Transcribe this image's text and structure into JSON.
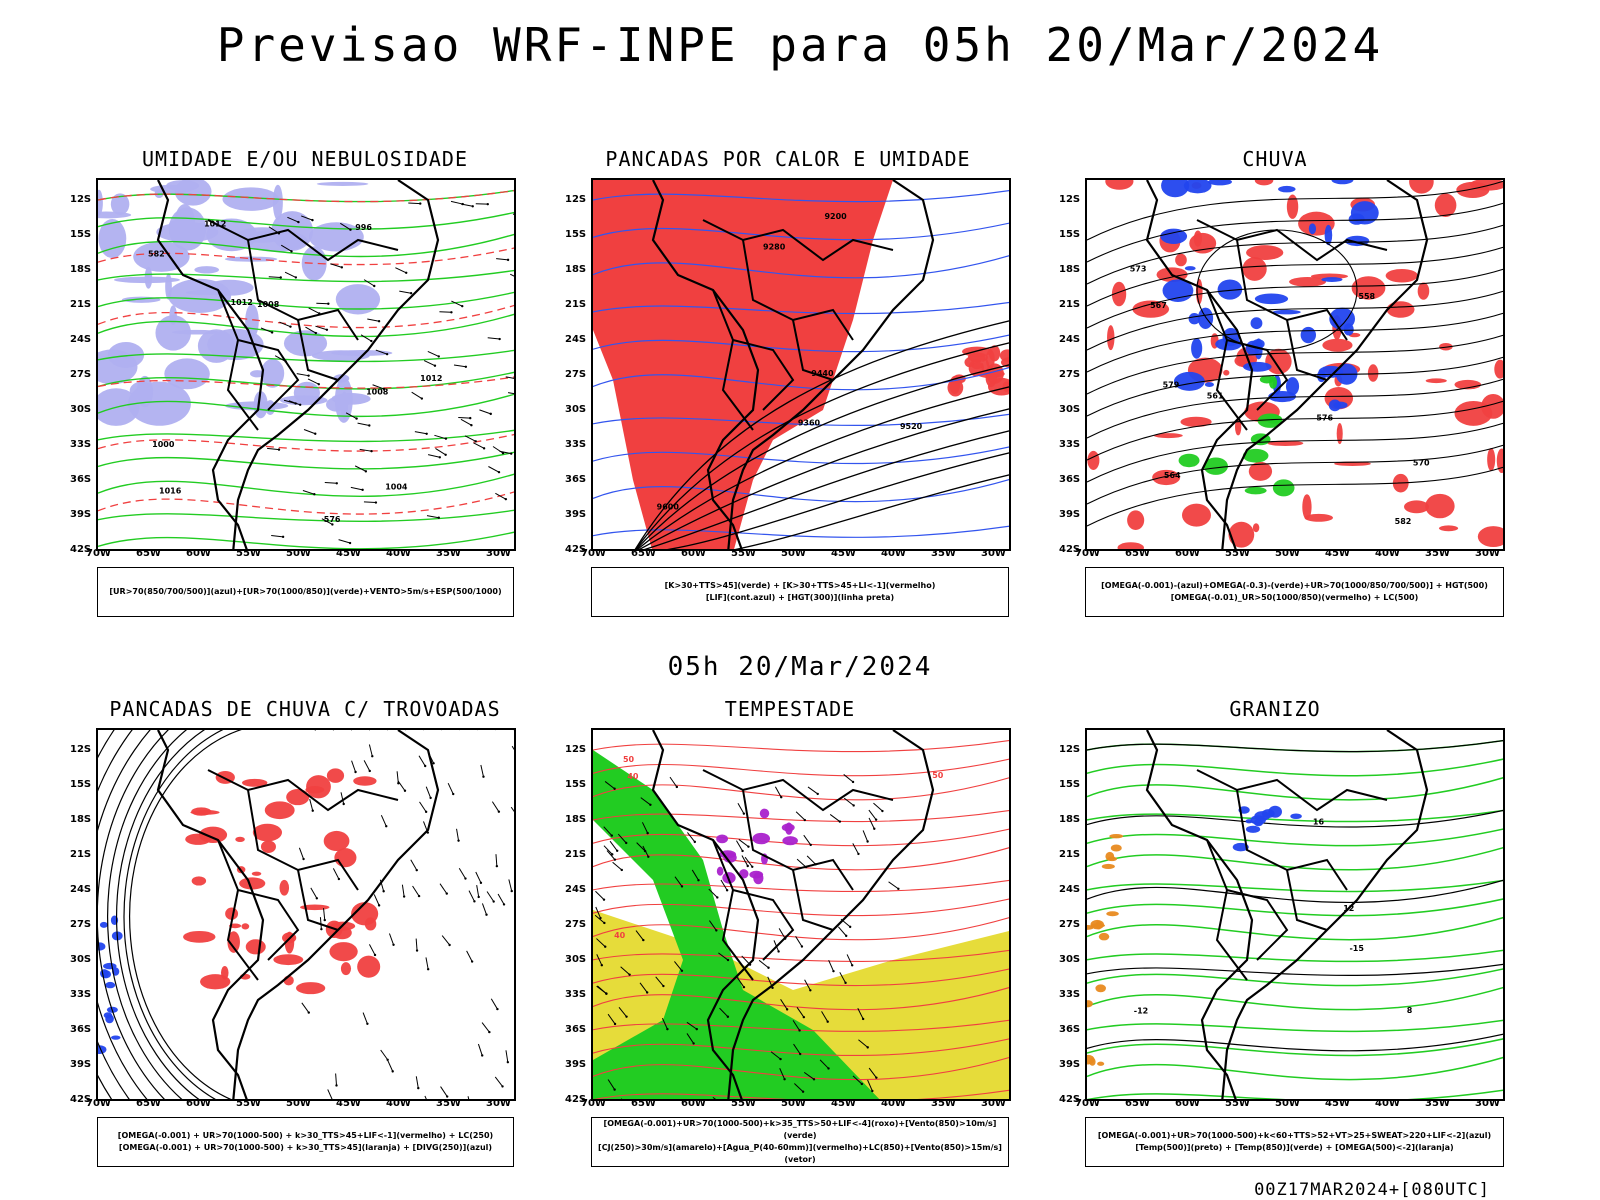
{
  "title": "Previsao WRF-INPE  para 05h 20/Mar/2024",
  "subtitle": "05h 20/Mar/2024",
  "footer": "00Z17MAR2024+[080UTC]",
  "lat_labels": [
    "12S",
    "15S",
    "18S",
    "21S",
    "24S",
    "27S",
    "30S",
    "33S",
    "36S",
    "39S",
    "42S"
  ],
  "lon_labels": [
    "70W",
    "65W",
    "60W",
    "55W",
    "50W",
    "45W",
    "40W",
    "35W",
    "30W"
  ],
  "panels": [
    {
      "title": "UMIDADE E/OU NEBULOSIDADE",
      "legend": [
        "[UR>70(850/700/500)](azul)+[UR>70(1000/850)](verde)+VENTO>5m/s+ESP(500/1000)"
      ],
      "contour_labels": [
        "1008",
        "1012",
        "1016",
        "1012",
        "1008",
        "1004",
        "1000",
        "996",
        "1012",
        "576",
        "582"
      ]
    },
    {
      "title": "PANCADAS POR CALOR E UMIDADE",
      "legend": [
        "[K>30+TTS>45](verde)  +  [K>30+TTS>45+LI<-1](vermelho)",
        "[LIF](cont.azul)  +  [HGT(300)](linha preta)"
      ],
      "contour_labels": [
        "9600",
        "9520",
        "9440",
        "9360",
        "9280",
        "9200"
      ]
    },
    {
      "title": "CHUVA",
      "legend": [
        "[OMEGA(-0.001)-(azul)+OMEGA(-0.3)-(verde)+UR>70(1000/850/700/500)]  +  HGT(500)",
        "[OMEGA(-0.01)_UR>50(1000/850)(vermelho)  +  LC(500)"
      ],
      "contour_labels": [
        "582",
        "579",
        "576",
        "573",
        "570",
        "567",
        "564",
        "561",
        "558"
      ]
    },
    {
      "title": "PANCADAS DE CHUVA C/ TROVOADAS",
      "legend": [
        "[OMEGA(-0.001)  +  UR>70(1000-500)  +  k>30_TTS>45+LIF<-1](vermelho)  +  LC(250)",
        "[OMEGA(-0.001)  +  UR>70(1000-500)  +  k>30_TTS>45](laranja)  +  [DIVG(250)](azul)"
      ],
      "contour_labels": []
    },
    {
      "title": "TEMPESTADE",
      "legend": [
        "[OMEGA(-0.001)+UR>70(1000-500)+k>35_TTS>50+LIF<-4](roxo)+[Vento(850)>10m/s](verde)",
        "[CJ(250)>30m/s](amarelo)+[Agua_P(40-60mm)](vermelho)+LC(850)+[Vento(850)>15m/s](vetor)"
      ],
      "contour_labels": [
        "40",
        "50",
        "40",
        "50"
      ]
    },
    {
      "title": "GRANIZO",
      "legend": [
        "[OMEGA(-0.001)+UR>70(1000-500)+k<60+TTS>52+VT>25+SWEAT>220+LIF<-2](azul)",
        "[Temp(500)](preto)  +  [Temp(850)](verde)  +  [OMEGA(500)<-2](laranja)"
      ],
      "contour_labels": [
        "-12",
        "-15",
        "16",
        "12",
        "8"
      ]
    }
  ],
  "colors": {
    "blue": "#2244ee",
    "green": "#22cc22",
    "red": "#f04040",
    "yellow": "#e6dc3a",
    "purple": "#aa22cc",
    "orange": "#e88a20",
    "lavender": "#b0b0f0"
  }
}
